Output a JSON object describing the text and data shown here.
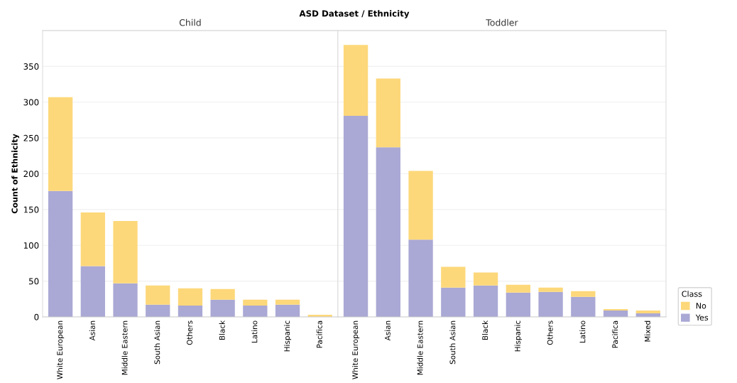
{
  "chart_data": [
    {
      "type": "bar",
      "title": "ASD Dataset / Ethnicity",
      "subtitle": "Child",
      "ylabel": "Count of Ethnicity",
      "stacked": true,
      "legend": "right",
      "legend_title": "Class",
      "categories": [
        "White European",
        "Asian",
        "Middle Eastern",
        "South Asian",
        "Others",
        "Black",
        "Latino",
        "Hispanic",
        "Pacifica"
      ],
      "series": [
        {
          "name": "Yes",
          "color": "#aaa8d4",
          "values": [
            176,
            71,
            47,
            17,
            16,
            24,
            16,
            17,
            null
          ]
        },
        {
          "name": "No",
          "color": "#fdd87a",
          "values": [
            131,
            75,
            87,
            27,
            24,
            15,
            8,
            7,
            3
          ]
        }
      ],
      "ylim": [
        0,
        400
      ],
      "yticks": [
        0,
        50,
        100,
        150,
        200,
        250,
        300,
        350
      ],
      "grid": "y"
    },
    {
      "type": "bar",
      "subtitle": "Toddler",
      "stacked": true,
      "tick_labels": "x",
      "categories": [
        "White European",
        "Asian",
        "Middle Eastern",
        "South Asian",
        "Black",
        "Hispanic",
        "Others",
        "Latino",
        "Pacifica",
        "Mixed"
      ],
      "series": [
        {
          "color": "#aaa8d4",
          "values": [
            281,
            237,
            108,
            41,
            44,
            34,
            35,
            28,
            9,
            5
          ]
        },
        {
          "color": "#fdd87a",
          "values": [
            99,
            96,
            96,
            29,
            18,
            11,
            6,
            8,
            2,
            4
          ]
        }
      ],
      "ylim": [
        0,
        400
      ],
      "yticks": [
        0,
        50,
        100,
        150,
        200,
        250,
        300,
        350
      ],
      "grid": "y"
    }
  ]
}
